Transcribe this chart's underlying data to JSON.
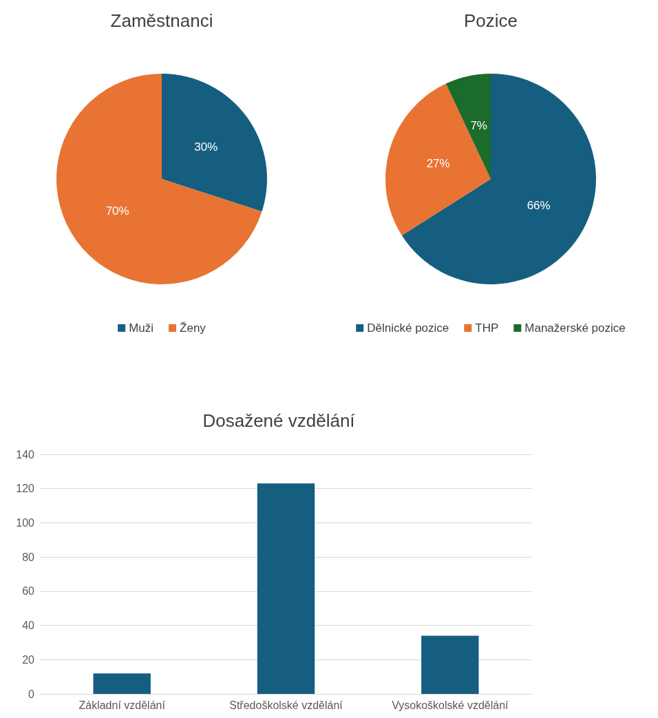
{
  "chart_data": [
    {
      "type": "pie",
      "title": "Zaměstnanci",
      "categories": [
        "Muži",
        "Ženy"
      ],
      "values": [
        30,
        70
      ],
      "colors": [
        "#165e80",
        "#e87333"
      ],
      "legend": "bottom",
      "value_labels": [
        "30%",
        "70%"
      ]
    },
    {
      "type": "pie",
      "title": "Pozice",
      "categories": [
        "Dělnické pozice",
        "THP",
        "Manažerské pozice"
      ],
      "values": [
        66,
        27,
        7
      ],
      "colors": [
        "#165e80",
        "#e87333",
        "#1b6b2a"
      ],
      "legend": "bottom",
      "value_labels": [
        "66%",
        "27%",
        "7%"
      ]
    },
    {
      "type": "bar",
      "title": "Dosažené vzdělání",
      "categories": [
        "Základní vzdělání",
        "Středoškolské vzdělání",
        "Vysokoškolské vzdělání"
      ],
      "values": [
        12,
        123,
        34
      ],
      "color": "#165e80",
      "ylim": [
        0,
        140
      ],
      "yticks": [
        0,
        20,
        40,
        60,
        80,
        100,
        120,
        140
      ],
      "grid": "y",
      "legend": false
    }
  ]
}
